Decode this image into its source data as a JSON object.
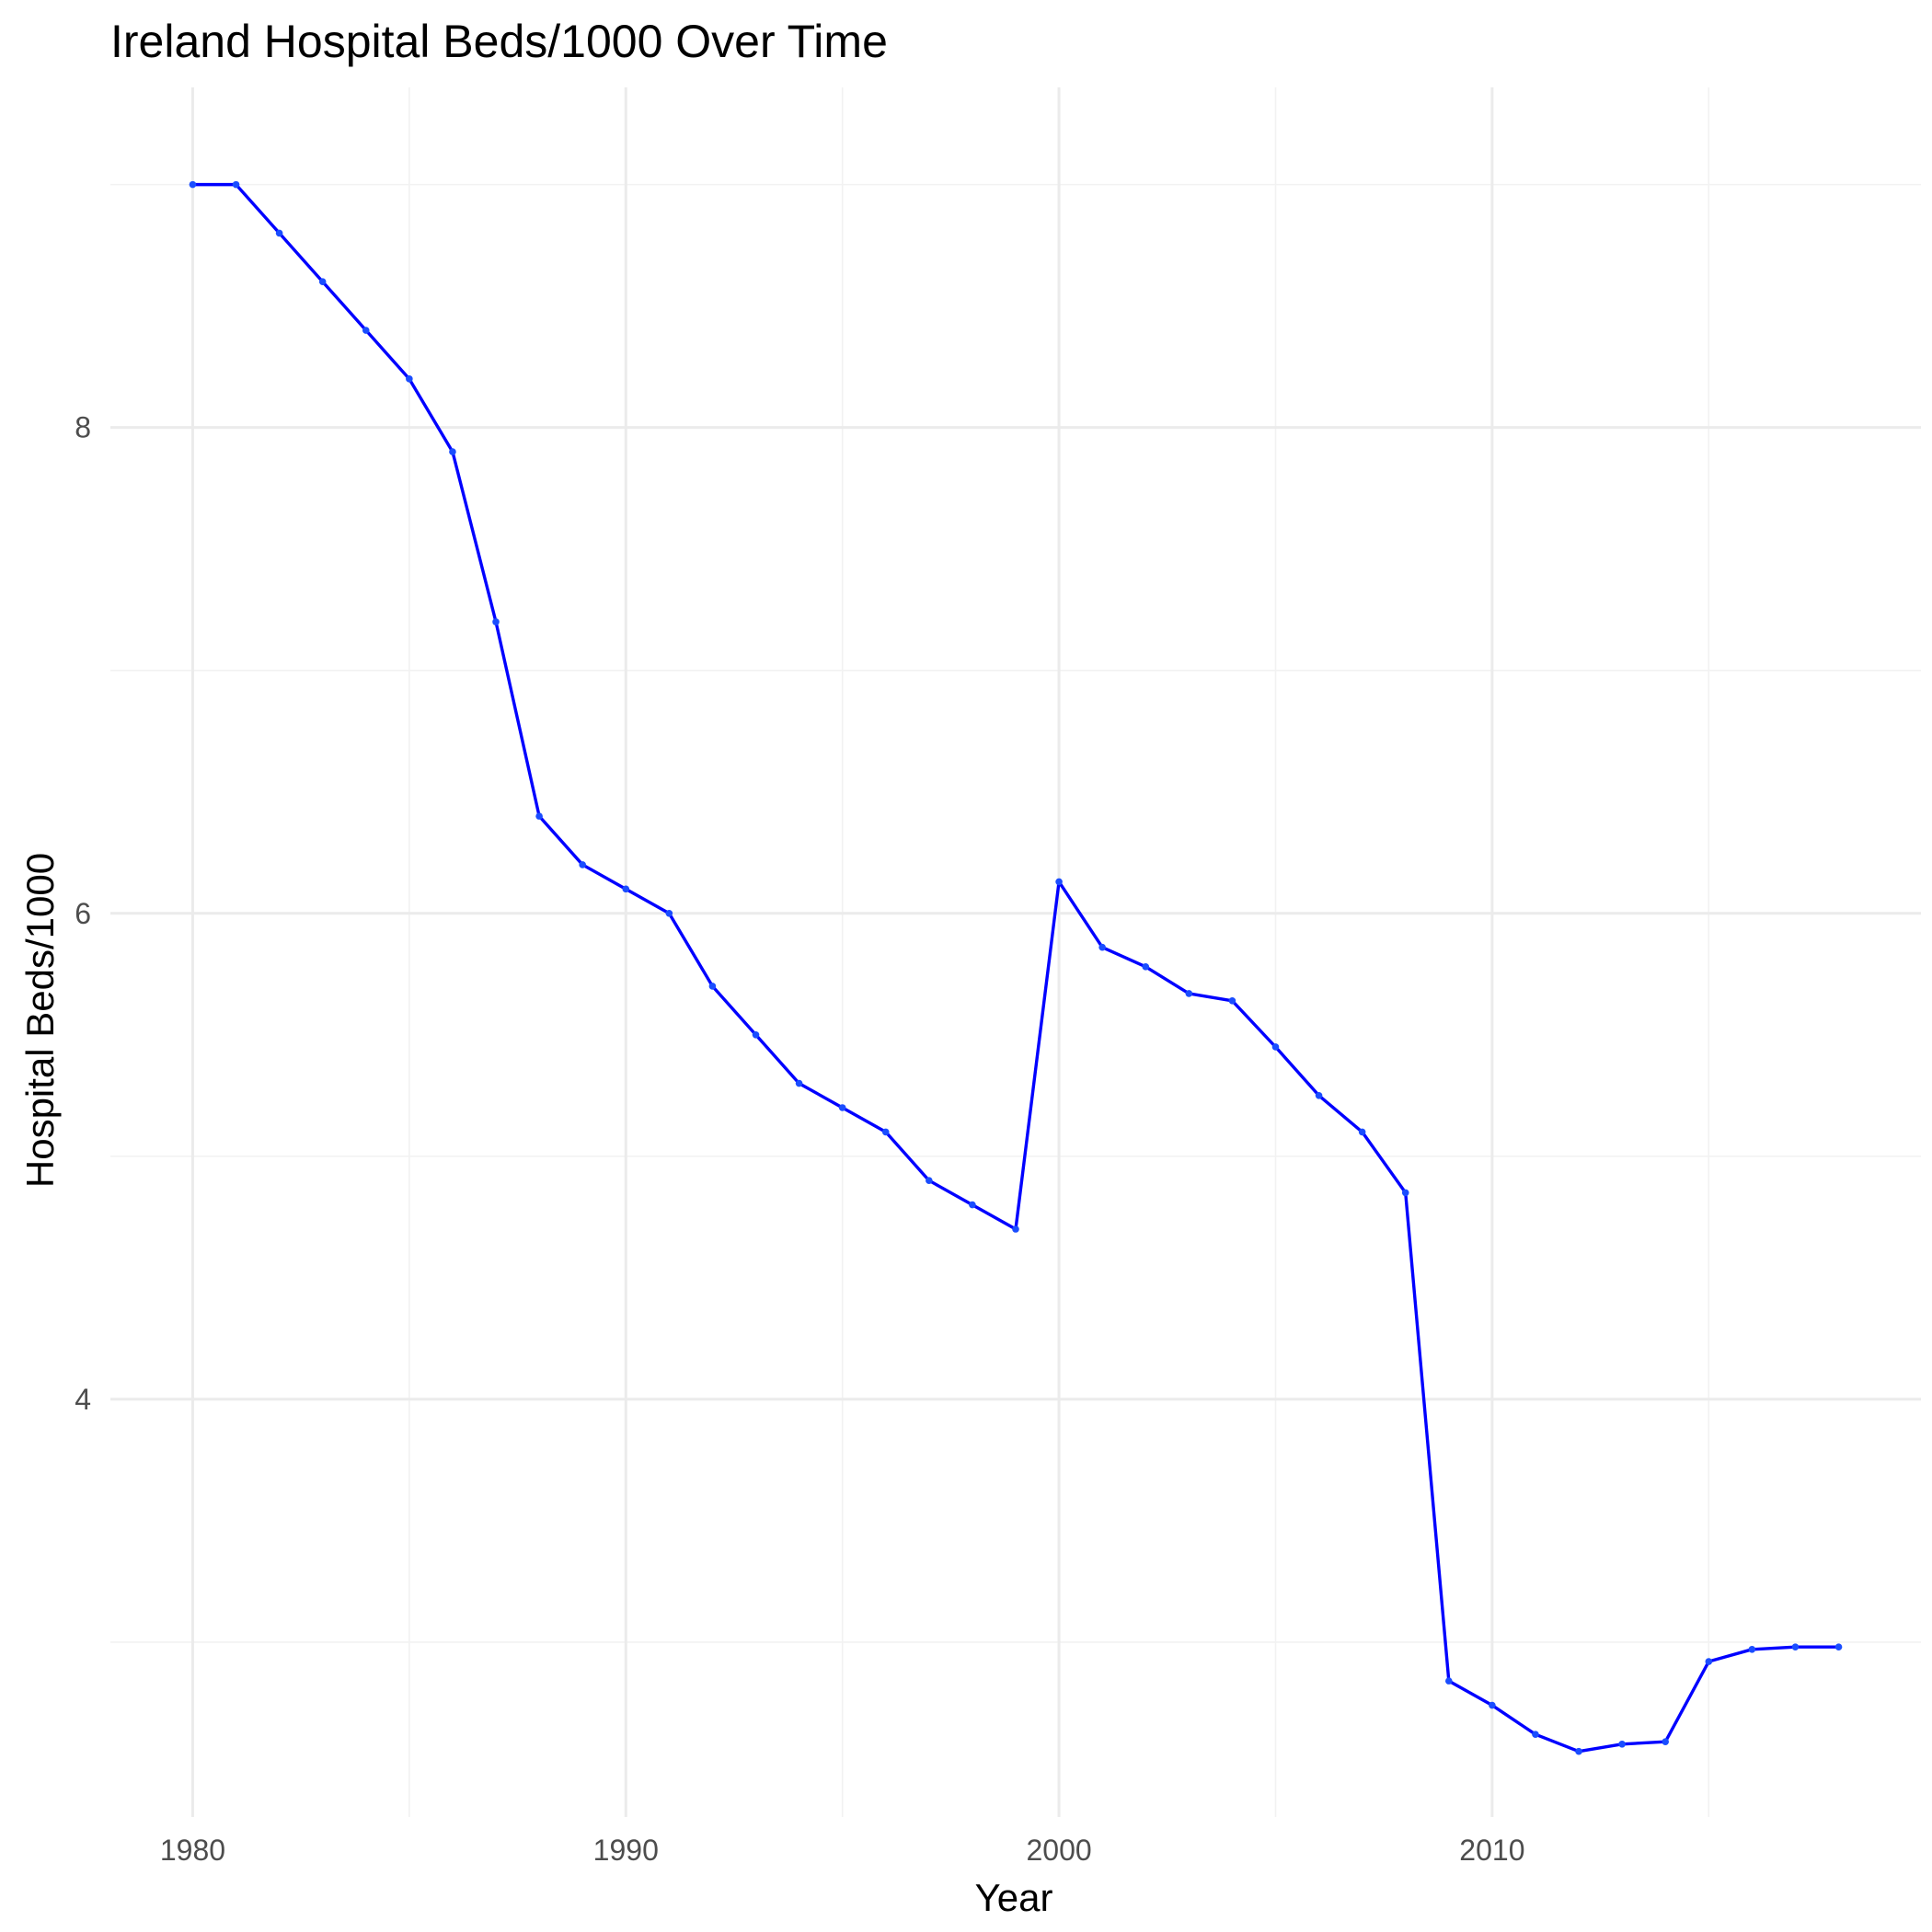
{
  "chart_data": {
    "type": "line",
    "title": "Ireland Hospital Beds/1000 Over Time",
    "xlabel": "Year",
    "ylabel": "Hospital Beds/1000",
    "xlim": [
      1978.1,
      2019.9
    ],
    "ylim": [
      2.28,
      9.4
    ],
    "x_ticks": [
      1980,
      1990,
      2000,
      2010
    ],
    "y_ticks": [
      4,
      6,
      8
    ],
    "x_minor": [
      1985,
      1995,
      2005,
      2015
    ],
    "y_minor": [
      3,
      5,
      7,
      9
    ],
    "grid": true,
    "legend": "none",
    "colors": {
      "line": "#0000ff",
      "point": "#1a4dff",
      "grid": "#ebebeb"
    },
    "series": [
      {
        "x": [
          1980,
          1981,
          1982,
          1983,
          1984,
          1985,
          1986,
          1987,
          1988,
          1989,
          1990,
          1991,
          1992,
          1993,
          1994,
          1995,
          1996,
          1997,
          1998,
          1999,
          2000,
          2001,
          2002,
          2003,
          2004,
          2005,
          2006,
          2007,
          2008,
          2009,
          2010,
          2011,
          2012,
          2013,
          2014,
          2015,
          2016,
          2017,
          2018
        ],
        "y": [
          9.0,
          9.0,
          8.8,
          8.6,
          8.4,
          8.2,
          7.9,
          7.2,
          6.4,
          6.2,
          6.1,
          6.0,
          5.7,
          5.5,
          5.3,
          5.2,
          5.1,
          4.9,
          4.8,
          4.7,
          6.13,
          5.86,
          5.78,
          5.67,
          5.64,
          5.45,
          5.25,
          5.1,
          4.85,
          2.84,
          2.74,
          2.62,
          2.55,
          2.58,
          2.59,
          2.92,
          2.97,
          2.98,
          2.98
        ]
      }
    ]
  }
}
